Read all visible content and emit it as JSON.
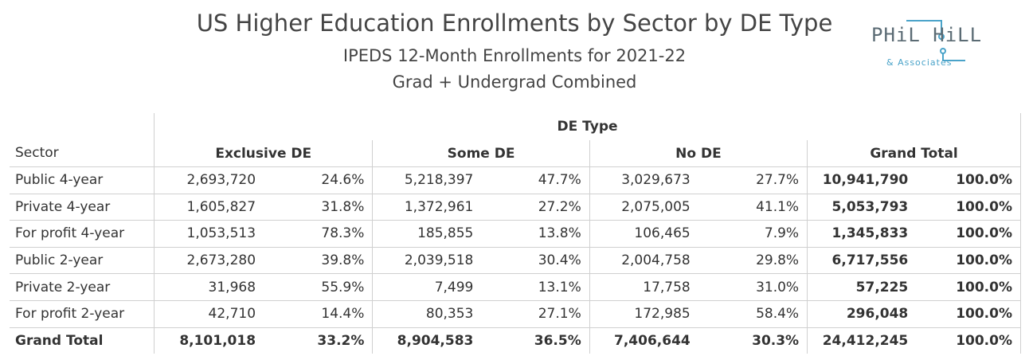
{
  "title": "US Higher Education Enrollments by Sector by DE Type",
  "subtitle1": "IPEDS 12-Month Enrollments for 2021-22",
  "subtitle2": "Grad + Undergrad Combined",
  "logo": {
    "main": "PHiL HiLL",
    "sub": "& Associates",
    "accent": "#4aa3c9"
  },
  "table": {
    "group_header": "DE Type",
    "row_header": "Sector",
    "columns": [
      "Exclusive DE",
      "Some DE",
      "No DE",
      "Grand Total"
    ],
    "rows": [
      {
        "sector": "Public 4-year",
        "excl": "2,693,720",
        "excl_pct": "24.6%",
        "some": "5,218,397",
        "some_pct": "47.7%",
        "no": "3,029,673",
        "no_pct": "27.7%",
        "total": "10,941,790",
        "total_pct": "100.0%"
      },
      {
        "sector": "Private 4-year",
        "excl": "1,605,827",
        "excl_pct": "31.8%",
        "some": "1,372,961",
        "some_pct": "27.2%",
        "no": "2,075,005",
        "no_pct": "41.1%",
        "total": "5,053,793",
        "total_pct": "100.0%"
      },
      {
        "sector": "For profit 4-year",
        "excl": "1,053,513",
        "excl_pct": "78.3%",
        "some": "185,855",
        "some_pct": "13.8%",
        "no": "106,465",
        "no_pct": "7.9%",
        "total": "1,345,833",
        "total_pct": "100.0%"
      },
      {
        "sector": "Public 2-year",
        "excl": "2,673,280",
        "excl_pct": "39.8%",
        "some": "2,039,518",
        "some_pct": "30.4%",
        "no": "2,004,758",
        "no_pct": "29.8%",
        "total": "6,717,556",
        "total_pct": "100.0%"
      },
      {
        "sector": "Private 2-year",
        "excl": "31,968",
        "excl_pct": "55.9%",
        "some": "7,499",
        "some_pct": "13.1%",
        "no": "17,758",
        "no_pct": "31.0%",
        "total": "57,225",
        "total_pct": "100.0%"
      },
      {
        "sector": "For profit 2-year",
        "excl": "42,710",
        "excl_pct": "14.4%",
        "some": "80,353",
        "some_pct": "27.1%",
        "no": "172,985",
        "no_pct": "58.4%",
        "total": "296,048",
        "total_pct": "100.0%"
      },
      {
        "sector": "Grand Total",
        "excl": "8,101,018",
        "excl_pct": "33.2%",
        "some": "8,904,583",
        "some_pct": "36.5%",
        "no": "7,406,644",
        "no_pct": "30.3%",
        "total": "24,412,245",
        "total_pct": "100.0%"
      }
    ]
  }
}
